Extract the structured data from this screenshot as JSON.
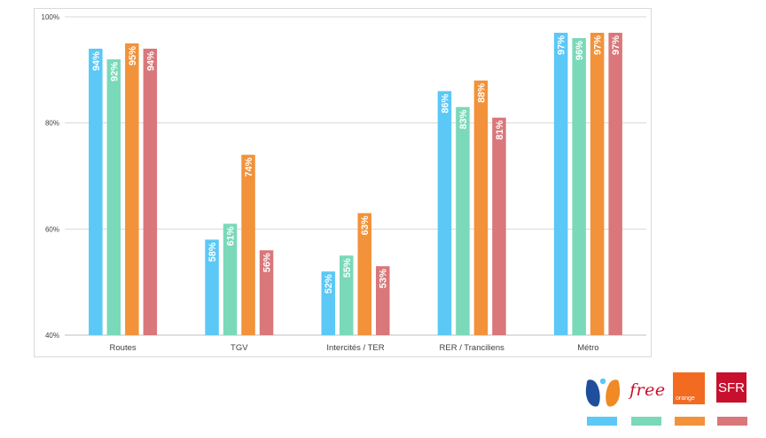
{
  "chart_data": {
    "type": "bar",
    "title": "",
    "xlabel": "",
    "ylabel": "",
    "ylim": [
      40,
      100
    ],
    "yticks": [
      "40%",
      "60%",
      "80%",
      "100%"
    ],
    "ytick_values": [
      40,
      60,
      80,
      100
    ],
    "grid": true,
    "categories": [
      "Routes",
      "TGV",
      "Intercités / TER",
      "RER / Tranciliens",
      "Métro"
    ],
    "series": [
      {
        "name": "Bouygues Telecom",
        "color": "#5bc8f5",
        "values": [
          94,
          58,
          52,
          86,
          97
        ],
        "labels": [
          "94%",
          "58%",
          "52%",
          "86%",
          "97%"
        ]
      },
      {
        "name": "Free",
        "color": "#7ad9b8",
        "values": [
          92,
          61,
          55,
          83,
          96
        ],
        "labels": [
          "92%",
          "61%",
          "55%",
          "83%",
          "96%"
        ]
      },
      {
        "name": "Orange",
        "color": "#f2923a",
        "values": [
          95,
          74,
          63,
          88,
          97
        ],
        "labels": [
          "95%",
          "74%",
          "63%",
          "88%",
          "97%"
        ]
      },
      {
        "name": "SFR",
        "color": "#d9777a",
        "values": [
          94,
          56,
          53,
          81,
          97
        ],
        "labels": [
          "94%",
          "56%",
          "53%",
          "81%",
          "97%"
        ]
      }
    ],
    "legend_position": "bottom-right"
  },
  "legend": {
    "free_text": "free",
    "orange_text": "orange",
    "sfr_text": "SFR"
  },
  "colors": {
    "bouygues_blue": "#1f4e9c",
    "bouygues_orange": "#f08a24",
    "grid": "#d9d9d9",
    "axis": "#bfbfbf",
    "label_text": "#ffffff",
    "tick_text": "#404040"
  }
}
